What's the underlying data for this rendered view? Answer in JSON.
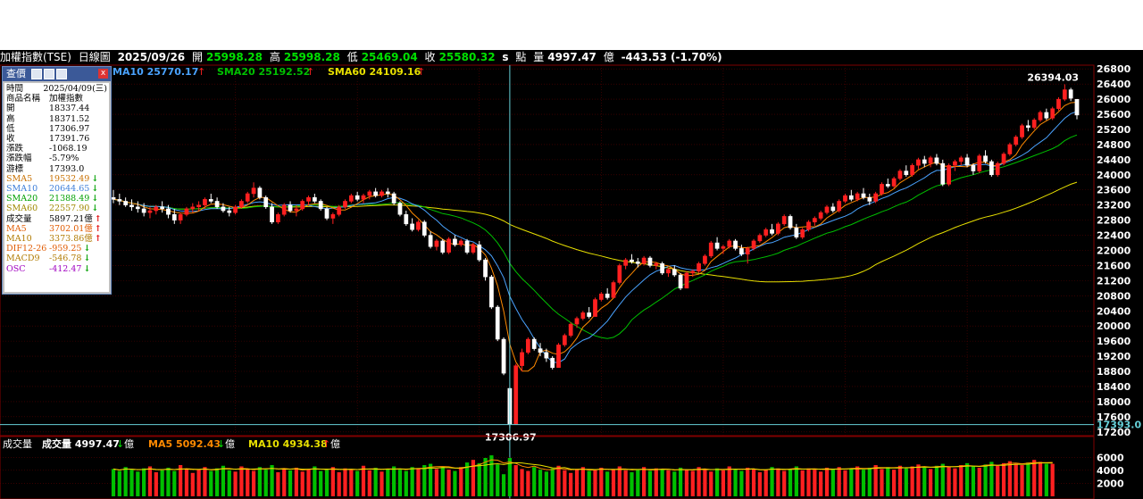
{
  "header": {
    "index_name": "加權指數(TSE)",
    "period": "日線圖",
    "date": "2025/09/26",
    "open_label": "開",
    "open": "25998.28",
    "high_label": "高",
    "high": "25998.28",
    "low_label": "低",
    "low": "25469.04",
    "close_label": "收",
    "close": "25580.32",
    "s_label": "s",
    "points_label": "點",
    "volume_label": "量",
    "volume": "4997.47",
    "volume_unit": "億",
    "change": "-443.53 (-1.70%)"
  },
  "ma_legend": {
    "ma10": "MA10 25770.17",
    "sma20": "SMA20 25192.52",
    "sma60": "SMA60 24109.16"
  },
  "volume_legend": {
    "title": "成交量",
    "vol": "成交量 4997.47",
    "unit": "億",
    "ma5": "MA5 5092.43",
    "ma10": "MA10 4934.38"
  },
  "info_box": {
    "title": "查價",
    "rows": [
      {
        "k": "時間",
        "v": "2025/04/09(三)",
        "c": "#000"
      },
      {
        "k": "商品名稱",
        "v": "加權指數",
        "c": "#000"
      },
      {
        "k": "開",
        "v": "18337.44",
        "c": "#000"
      },
      {
        "k": "高",
        "v": "18371.52",
        "c": "#000"
      },
      {
        "k": "低",
        "v": "17306.97",
        "c": "#000"
      },
      {
        "k": "收",
        "v": "17391.76",
        "c": "#000"
      },
      {
        "k": "漲跌",
        "v": "-1068.19",
        "c": "#000"
      },
      {
        "k": "漲跌幅",
        "v": "-5.79%",
        "c": "#000"
      },
      {
        "k": "游標",
        "v": "17393.0",
        "c": "#000"
      },
      {
        "k": "SMA5",
        "v": "19532.49",
        "c": "#c87000",
        "a": "down"
      },
      {
        "k": "SMA10",
        "v": "20644.65",
        "c": "#3c7dd9",
        "a": "down"
      },
      {
        "k": "SMA20",
        "v": "21388.49",
        "c": "#00a000",
        "a": "down"
      },
      {
        "k": "SMA60",
        "v": "22557.90",
        "c": "#a08800",
        "a": "down"
      },
      {
        "k": "成交量",
        "v": "5897.21億",
        "c": "#000",
        "a": "up"
      },
      {
        "k": "MA5",
        "v": "3702.01億",
        "c": "#e05a00",
        "a": "up"
      },
      {
        "k": "MA10",
        "v": "3373.86億",
        "c": "#b07a00",
        "a": "up"
      },
      {
        "k": "DIF12-26",
        "v": "-959.25",
        "c": "#e05a00",
        "a": "down"
      },
      {
        "k": "MACD9",
        "v": "-546.78",
        "c": "#b07a00",
        "a": "down"
      },
      {
        "k": "OSC",
        "v": "-412.47",
        "c": "#a000c0",
        "a": "down"
      }
    ]
  },
  "chart_data": {
    "type": "candlestick",
    "y_ticks": [
      17200,
      17600,
      18000,
      18400,
      18800,
      19200,
      19600,
      20000,
      20400,
      20800,
      21200,
      21600,
      22000,
      22400,
      22800,
      23200,
      23600,
      24000,
      24400,
      24800,
      25200,
      25600,
      26000,
      26400,
      26800
    ],
    "ylim": [
      17100,
      26900
    ],
    "price_annotations": {
      "high": "26394.03",
      "low": "17306.97",
      "cursor": "17393.0"
    },
    "volume_ticks": [
      2000,
      4000,
      6000
    ],
    "volume_ylim": [
      0,
      7000
    ],
    "colors": {
      "up": "#ff2020",
      "down": "#00c000",
      "ma5": "#ff8a00",
      "ma10": "#4aa3ff",
      "sma20": "#00c000",
      "sma60": "#e8e000",
      "cursor": "#66d0d8",
      "grid": "#5a0000"
    },
    "series": {
      "candles": [
        [
          23400,
          23600,
          23250,
          23350
        ],
        [
          23350,
          23500,
          23200,
          23300
        ],
        [
          23300,
          23400,
          23150,
          23200
        ],
        [
          23200,
          23350,
          23050,
          23150
        ],
        [
          23150,
          23300,
          23000,
          23100
        ],
        [
          23100,
          23250,
          22900,
          23000
        ],
        [
          23000,
          23150,
          22850,
          23050
        ],
        [
          23050,
          23200,
          22950,
          23150
        ],
        [
          23150,
          23300,
          23000,
          23100
        ],
        [
          23100,
          23200,
          22850,
          22950
        ],
        [
          22950,
          23100,
          22700,
          22800
        ],
        [
          22800,
          23000,
          22700,
          22950
        ],
        [
          22950,
          23150,
          22900,
          23100
        ],
        [
          23100,
          23250,
          23000,
          23150
        ],
        [
          23150,
          23300,
          23050,
          23200
        ],
        [
          23200,
          23400,
          23100,
          23350
        ],
        [
          23350,
          23500,
          23250,
          23300
        ],
        [
          23300,
          23400,
          23100,
          23150
        ],
        [
          23150,
          23250,
          23000,
          23050
        ],
        [
          23050,
          23150,
          22900,
          23000
        ],
        [
          23000,
          23200,
          22950,
          23150
        ],
        [
          23150,
          23350,
          23100,
          23300
        ],
        [
          23300,
          23550,
          23250,
          23500
        ],
        [
          23500,
          23800,
          23400,
          23650
        ],
        [
          23650,
          23700,
          23350,
          23400
        ],
        [
          23400,
          23450,
          23100,
          23150
        ],
        [
          23150,
          23250,
          22700,
          22750
        ],
        [
          22750,
          23000,
          22700,
          22950
        ],
        [
          22950,
          23250,
          22900,
          23200
        ],
        [
          23200,
          23300,
          23000,
          23050
        ],
        [
          23050,
          23200,
          22900,
          23100
        ],
        [
          23100,
          23350,
          23050,
          23300
        ],
        [
          23300,
          23450,
          23200,
          23400
        ],
        [
          23400,
          23500,
          23250,
          23300
        ],
        [
          23300,
          23350,
          23050,
          23100
        ],
        [
          23100,
          23150,
          22800,
          22850
        ],
        [
          22850,
          23000,
          22700,
          22950
        ],
        [
          22950,
          23200,
          22900,
          23150
        ],
        [
          23150,
          23350,
          23100,
          23300
        ],
        [
          23300,
          23500,
          23250,
          23450
        ],
        [
          23450,
          23550,
          23300,
          23350
        ],
        [
          23350,
          23500,
          23250,
          23450
        ],
        [
          23450,
          23600,
          23350,
          23550
        ],
        [
          23550,
          23650,
          23400,
          23450
        ],
        [
          23450,
          23600,
          23400,
          23550
        ],
        [
          23550,
          23650,
          23400,
          23500
        ],
        [
          23500,
          23550,
          23200,
          23250
        ],
        [
          23250,
          23300,
          22900,
          22950
        ],
        [
          22950,
          23050,
          22650,
          22700
        ],
        [
          22700,
          22850,
          22500,
          22550
        ],
        [
          22550,
          22800,
          22500,
          22750
        ],
        [
          22750,
          22800,
          22350,
          22400
        ],
        [
          22400,
          22500,
          22050,
          22100
        ],
        [
          22100,
          22300,
          22000,
          22250
        ],
        [
          22250,
          22300,
          21900,
          21950
        ],
        [
          21950,
          22350,
          21900,
          22300
        ],
        [
          22300,
          22400,
          22100,
          22150
        ],
        [
          22150,
          22300,
          22100,
          22250
        ],
        [
          22250,
          22300,
          21900,
          21950
        ],
        [
          21950,
          22200,
          21900,
          22150
        ],
        [
          22150,
          22250,
          21700,
          21750
        ],
        [
          21750,
          21800,
          21200,
          21300
        ],
        [
          21300,
          21350,
          20450,
          20500
        ],
        [
          20500,
          20550,
          19600,
          19650
        ],
        [
          19650,
          19700,
          18700,
          18750
        ],
        [
          18350,
          18370,
          17300,
          17390
        ],
        [
          17390,
          19000,
          17390,
          18950
        ],
        [
          18950,
          19400,
          18800,
          19300
        ],
        [
          19300,
          19700,
          19250,
          19650
        ],
        [
          19650,
          19700,
          19350,
          19400
        ],
        [
          19400,
          19550,
          19200,
          19300
        ],
        [
          19300,
          19400,
          19050,
          19150
        ],
        [
          19150,
          19200,
          18850,
          18900
        ],
        [
          18900,
          19550,
          18900,
          19500
        ],
        [
          19500,
          19800,
          19450,
          19750
        ],
        [
          19750,
          20100,
          19700,
          20050
        ],
        [
          20050,
          20250,
          19950,
          20200
        ],
        [
          20200,
          20400,
          20150,
          20350
        ],
        [
          20350,
          20500,
          20200,
          20250
        ],
        [
          20250,
          20750,
          20250,
          20700
        ],
        [
          20700,
          20900,
          20650,
          20850
        ],
        [
          20850,
          21000,
          20700,
          20750
        ],
        [
          20750,
          21200,
          20750,
          21150
        ],
        [
          21150,
          21650,
          21100,
          21600
        ],
        [
          21600,
          21800,
          21500,
          21750
        ],
        [
          21750,
          21900,
          21650,
          21700
        ],
        [
          21700,
          21800,
          21550,
          21650
        ],
        [
          21650,
          21850,
          21600,
          21800
        ],
        [
          21800,
          21850,
          21550,
          21600
        ],
        [
          21600,
          21700,
          21500,
          21650
        ],
        [
          21650,
          21700,
          21350,
          21400
        ],
        [
          21400,
          21550,
          21300,
          21500
        ],
        [
          21500,
          21600,
          21300,
          21350
        ],
        [
          21350,
          21400,
          20950,
          21000
        ],
        [
          21000,
          21450,
          21000,
          21400
        ],
        [
          21400,
          21500,
          21300,
          21450
        ],
        [
          21450,
          21700,
          21400,
          21650
        ],
        [
          21650,
          21900,
          21600,
          21850
        ],
        [
          21850,
          22250,
          21800,
          22200
        ],
        [
          22200,
          22350,
          22000,
          22050
        ],
        [
          22050,
          22150,
          21900,
          22100
        ],
        [
          22100,
          22300,
          22050,
          22250
        ],
        [
          22250,
          22300,
          22000,
          22050
        ],
        [
          22050,
          22150,
          21850,
          21900
        ],
        [
          21900,
          22100,
          21650,
          22050
        ],
        [
          22050,
          22300,
          22000,
          22250
        ],
        [
          22250,
          22450,
          22200,
          22400
        ],
        [
          22400,
          22600,
          22350,
          22550
        ],
        [
          22550,
          22700,
          22400,
          22450
        ],
        [
          22450,
          22750,
          22400,
          22700
        ],
        [
          22700,
          22950,
          22650,
          22900
        ],
        [
          22900,
          22950,
          22550,
          22600
        ],
        [
          22600,
          22700,
          22300,
          22350
        ],
        [
          22350,
          22600,
          22300,
          22550
        ],
        [
          22550,
          22800,
          22500,
          22750
        ],
        [
          22750,
          22900,
          22650,
          22850
        ],
        [
          22850,
          23050,
          22800,
          23000
        ],
        [
          23000,
          23200,
          22950,
          23150
        ],
        [
          23150,
          23250,
          23000,
          23050
        ],
        [
          23050,
          23350,
          23000,
          23300
        ],
        [
          23300,
          23500,
          23250,
          23450
        ],
        [
          23450,
          23600,
          23300,
          23350
        ],
        [
          23350,
          23550,
          23300,
          23500
        ],
        [
          23500,
          23650,
          23350,
          23400
        ],
        [
          23400,
          23500,
          23200,
          23300
        ],
        [
          23300,
          23550,
          23250,
          23500
        ],
        [
          23500,
          23800,
          23450,
          23750
        ],
        [
          23750,
          23900,
          23650,
          23700
        ],
        [
          23700,
          23950,
          23650,
          23900
        ],
        [
          23900,
          24150,
          23850,
          24100
        ],
        [
          24100,
          24250,
          23950,
          24000
        ],
        [
          24000,
          24300,
          23950,
          24250
        ],
        [
          24250,
          24450,
          24150,
          24400
        ],
        [
          24400,
          24500,
          24200,
          24300
        ],
        [
          24300,
          24500,
          24200,
          24450
        ],
        [
          24450,
          24550,
          24250,
          24300
        ],
        [
          24300,
          24400,
          23700,
          23750
        ],
        [
          23750,
          24300,
          23700,
          24250
        ],
        [
          24250,
          24400,
          24100,
          24350
        ],
        [
          24350,
          24500,
          24250,
          24450
        ],
        [
          24450,
          24550,
          24200,
          24250
        ],
        [
          24250,
          24300,
          24000,
          24100
        ],
        [
          24100,
          24550,
          24050,
          24500
        ],
        [
          24500,
          24650,
          24300,
          24350
        ],
        [
          24350,
          24400,
          23950,
          24000
        ],
        [
          24000,
          24350,
          23950,
          24300
        ],
        [
          24300,
          24600,
          24250,
          24550
        ],
        [
          24550,
          24850,
          24500,
          24800
        ],
        [
          24800,
          25050,
          24750,
          25000
        ],
        [
          25000,
          25350,
          24950,
          25300
        ],
        [
          25300,
          25450,
          25150,
          25250
        ],
        [
          25250,
          25500,
          25200,
          25450
        ],
        [
          25450,
          25700,
          25400,
          25650
        ],
        [
          25650,
          25750,
          25450,
          25500
        ],
        [
          25500,
          25800,
          25450,
          25750
        ],
        [
          25750,
          26050,
          25700,
          26000
        ],
        [
          26000,
          26394,
          25950,
          26250
        ],
        [
          26250,
          26300,
          25950,
          26024
        ],
        [
          25998,
          25998,
          25469,
          25580
        ]
      ],
      "volume": [
        4200,
        3900,
        4500,
        4100,
        3800,
        4300,
        4600,
        3700,
        4000,
        4400,
        3900,
        4800,
        4200,
        3600,
        4100,
        4500,
        3900,
        4300,
        4700,
        4000,
        3800,
        4600,
        4200,
        3900,
        4500,
        4100,
        4800,
        3700,
        4300,
        4000,
        4400,
        3800,
        4200,
        4600,
        3900,
        4100,
        4500,
        3700,
        4300,
        4200,
        3900,
        4700,
        4000,
        4400,
        3800,
        4200,
        4600,
        4100,
        3900,
        4500,
        4300,
        4800,
        5000,
        4200,
        4600,
        4100,
        3900,
        4500,
        5200,
        5600,
        5100,
        5900,
        6300,
        4900,
        3400,
        5897,
        4800,
        4200,
        3900,
        4500,
        4100,
        3800,
        4300,
        4700,
        4000,
        3600,
        4200,
        4500,
        3900,
        4100,
        4400,
        3800,
        4200,
        4600,
        4000,
        3700,
        4100,
        4500,
        3900,
        4300,
        4200,
        4000,
        3800,
        4400,
        4100,
        3900,
        4500,
        4200,
        3800,
        4300,
        4000,
        4600,
        4100,
        3900,
        4400,
        4200,
        3700,
        4100,
        4500,
        4300,
        3900,
        4200,
        4600,
        4000,
        4300,
        4100,
        3800,
        4400,
        4200,
        4500,
        4000,
        4300,
        4600,
        4100,
        4400,
        4800,
        4200,
        4500,
        4100,
        4700,
        4300,
        4600,
        4900,
        4400,
        4200,
        4700,
        5000,
        4500,
        4300,
        4800,
        5100,
        4600,
        4400,
        4900,
        5300,
        4700,
        5100,
        5400,
        5000,
        4800,
        5200,
        5600,
        5300,
        5000,
        4997
      ]
    }
  }
}
